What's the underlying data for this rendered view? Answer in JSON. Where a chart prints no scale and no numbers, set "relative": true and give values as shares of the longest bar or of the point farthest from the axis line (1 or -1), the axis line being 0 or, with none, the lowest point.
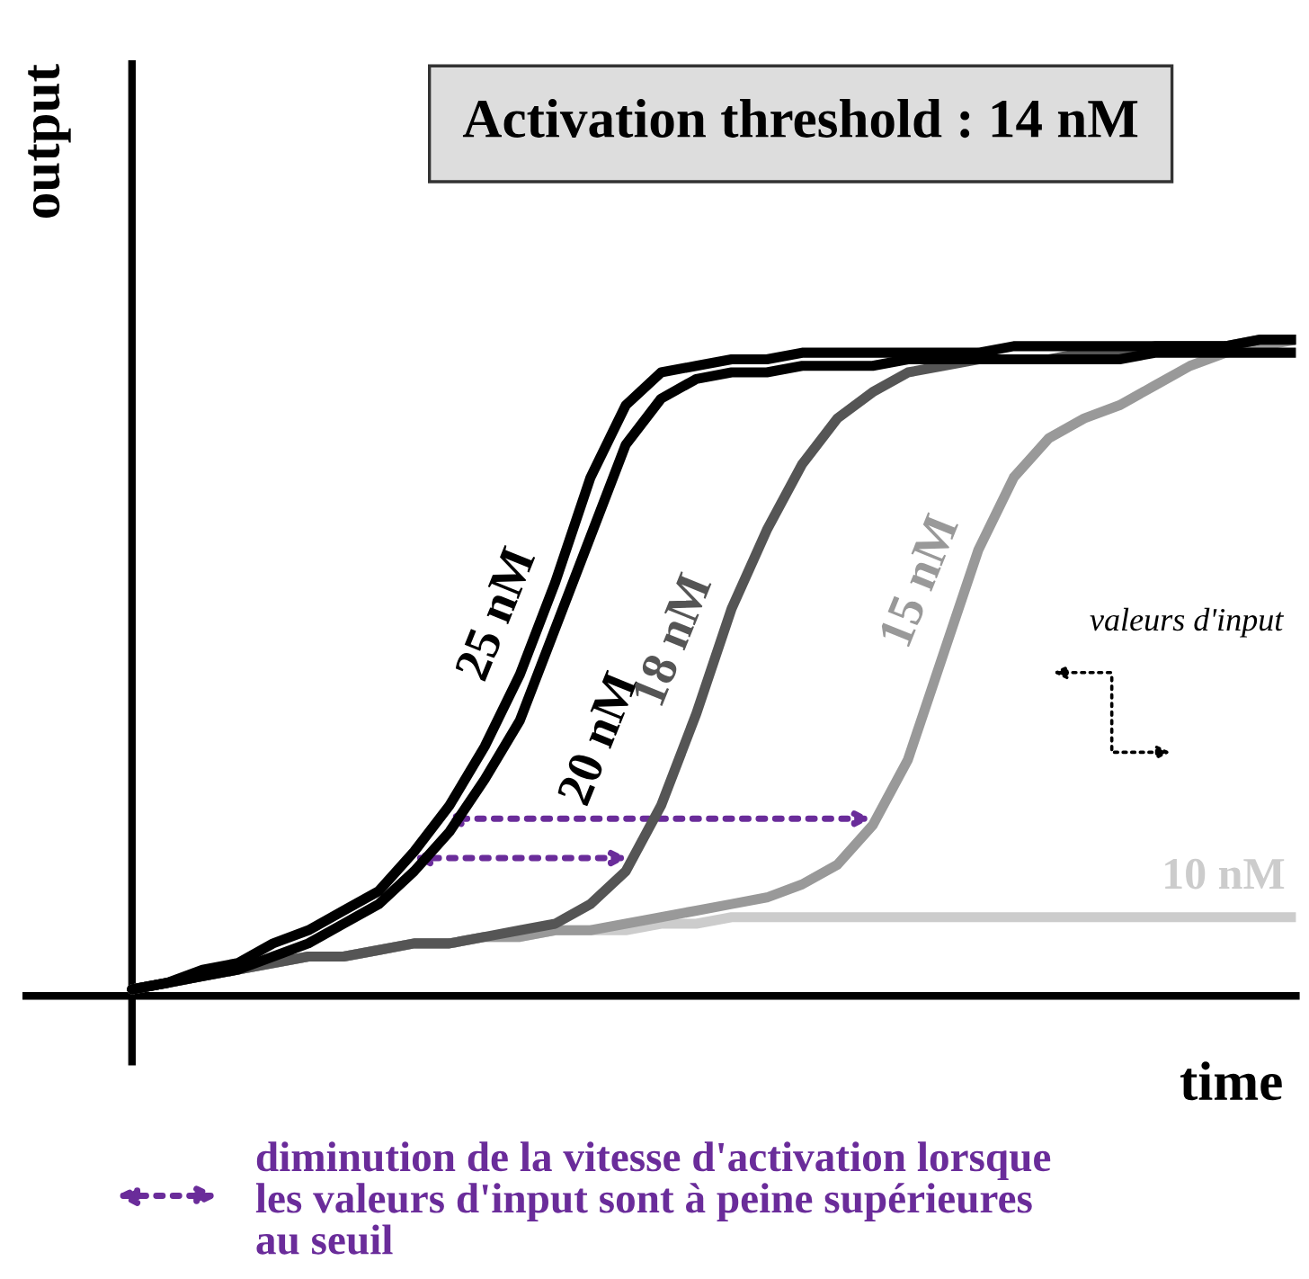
{
  "chart_data": {
    "type": "line",
    "relative": true,
    "title": "Activation threshold : 14 nM",
    "xlabel": "time",
    "ylabel": "output",
    "legend": false,
    "marker": "none",
    "line_style": "solid",
    "categories": [
      null,
      null,
      null,
      null,
      null,
      null,
      null,
      null,
      null,
      null,
      null,
      null,
      null,
      null,
      null,
      null,
      null,
      null,
      null,
      null,
      null,
      null,
      null,
      null,
      null,
      null,
      null,
      null,
      null,
      null,
      null,
      null,
      null,
      null
    ],
    "series": [
      {
        "name": "25 nM",
        "color": "#000000",
        "values": [
          0.01,
          0.02,
          0.04,
          0.05,
          0.08,
          0.1,
          0.13,
          0.16,
          0.22,
          0.29,
          0.38,
          0.49,
          0.63,
          0.79,
          0.9,
          0.95,
          0.96,
          0.97,
          0.97,
          0.98,
          0.98,
          0.98,
          0.98,
          0.98,
          0.98,
          0.99,
          0.99,
          0.99,
          0.99,
          0.99,
          0.99,
          0.99,
          1.0,
          1.0
        ]
      },
      {
        "name": "20 nM",
        "color": "#000000",
        "values": [
          0.01,
          0.02,
          0.03,
          0.04,
          0.06,
          0.08,
          0.11,
          0.14,
          0.19,
          0.25,
          0.33,
          0.42,
          0.56,
          0.7,
          0.84,
          0.91,
          0.94,
          0.95,
          0.95,
          0.96,
          0.96,
          0.96,
          0.97,
          0.97,
          0.97,
          0.97,
          0.97,
          0.97,
          0.97,
          0.98,
          0.98,
          0.98,
          0.98,
          0.98
        ]
      },
      {
        "name": "18 nM",
        "color": "#555555",
        "values": [
          0.01,
          0.02,
          0.03,
          0.04,
          0.05,
          0.06,
          0.06,
          0.07,
          0.08,
          0.08,
          0.09,
          0.1,
          0.11,
          0.14,
          0.19,
          0.29,
          0.43,
          0.59,
          0.71,
          0.81,
          0.88,
          0.92,
          0.95,
          0.96,
          0.97,
          0.97,
          0.97,
          0.98,
          0.98,
          0.99,
          0.99,
          0.99,
          1.0,
          1.0
        ]
      },
      {
        "name": "15 nM",
        "color": "#999999",
        "values": [
          0.01,
          0.02,
          0.03,
          0.04,
          0.05,
          0.06,
          0.06,
          0.07,
          0.08,
          0.08,
          0.09,
          0.09,
          0.1,
          0.1,
          0.11,
          0.12,
          0.13,
          0.14,
          0.15,
          0.17,
          0.2,
          0.26,
          0.36,
          0.52,
          0.68,
          0.79,
          0.85,
          0.88,
          0.9,
          0.93,
          0.96,
          0.98,
          0.99,
          1.0
        ]
      },
      {
        "name": "10 nM",
        "color": "#cccccc",
        "values": [
          0.01,
          0.02,
          0.03,
          0.04,
          0.05,
          0.06,
          0.06,
          0.07,
          0.08,
          0.08,
          0.09,
          0.09,
          0.1,
          0.1,
          0.1,
          0.11,
          0.11,
          0.12,
          0.12,
          0.12,
          0.12,
          0.12,
          0.12,
          0.12,
          0.12,
          0.12,
          0.12,
          0.12,
          0.12,
          0.12,
          0.12,
          0.12,
          0.12,
          0.12
        ]
      }
    ],
    "annotations": [
      "valeurs d'input",
      "diminution de la vitesse d'activation lorsque\nles valeurs d'input sont à peine supérieures\nau seuil"
    ]
  }
}
